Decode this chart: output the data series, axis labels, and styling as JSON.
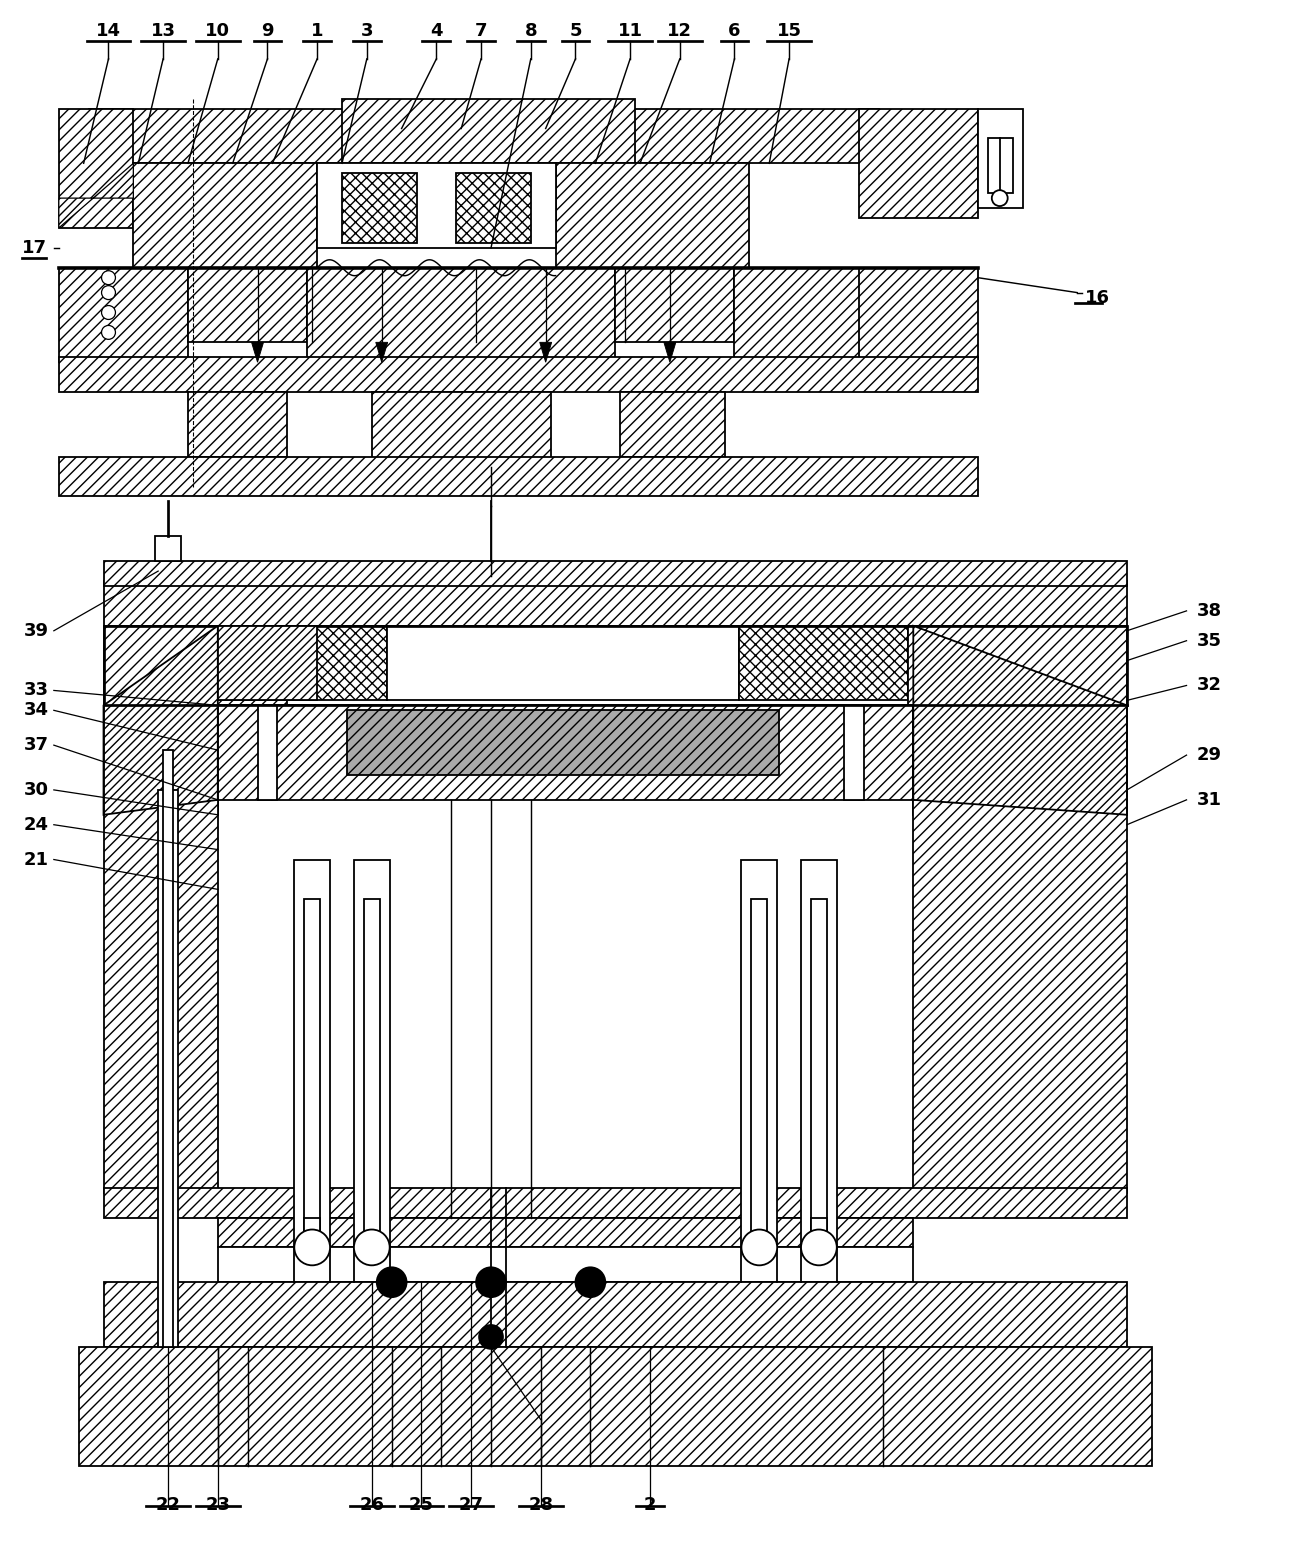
{
  "figure_width": 12.99,
  "figure_height": 15.45,
  "bg_color": "#ffffff",
  "lc": "#000000",
  "lw": 1.3,
  "fs": 13
}
